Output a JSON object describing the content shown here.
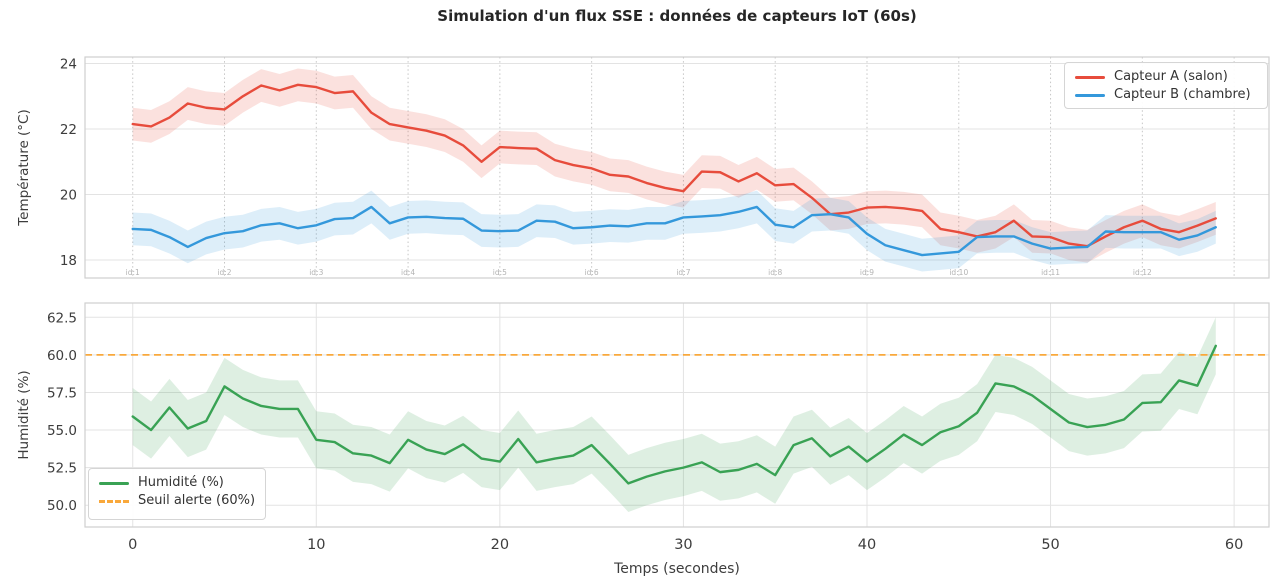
{
  "figure": {
    "title": "Simulation d'un flux SSE : données de capteurs IoT (60s)"
  },
  "style": {
    "background": "#ffffff",
    "title_color": "#262626",
    "grid": "#e3e3e3",
    "spine": "#cfcfcf",
    "dotted_vline": "#c6c6c6",
    "tick_label": "#3d3d3d",
    "id_label": "#b4b4b4",
    "legend_border": "#d5d5d5",
    "legend_text": "#333333"
  },
  "chart_data": [
    {
      "type": "line",
      "title": "",
      "xlabel": "",
      "ylabel": "Température (°C)",
      "xlim": [
        -2.6,
        61.9
      ],
      "ylim": [
        17.45,
        24.2
      ],
      "x_seconds": {
        "start": 0,
        "end": 59,
        "step": 1
      },
      "yticks": {
        "values": [
          18,
          20,
          22,
          24
        ],
        "labels": [
          "18",
          "20",
          "22",
          "24"
        ]
      },
      "grid": "horizontal solid, dotted vertical lines at id marks",
      "legend_position": "upper right",
      "series": [
        {
          "name": "Capteur A (salon)",
          "color": "#e74c3c",
          "band_halfwidth": 0.5,
          "values": [
            22.15,
            22.08,
            22.35,
            22.78,
            22.65,
            22.6,
            23.0,
            23.33,
            23.18,
            23.35,
            23.28,
            23.1,
            23.15,
            22.5,
            22.15,
            22.05,
            21.95,
            21.8,
            21.5,
            21.0,
            21.45,
            21.42,
            21.4,
            21.05,
            20.9,
            20.8,
            20.6,
            20.55,
            20.35,
            20.2,
            20.1,
            20.7,
            20.68,
            20.4,
            20.65,
            20.28,
            20.32,
            19.9,
            19.4,
            19.45,
            19.6,
            19.62,
            19.58,
            19.5,
            18.95,
            18.85,
            18.72,
            18.85,
            19.2,
            18.72,
            18.7,
            18.5,
            18.42,
            18.72,
            19.0,
            19.2,
            18.95,
            18.85,
            19.05,
            19.27
          ]
        },
        {
          "name": "Capteur B (chambre)",
          "color": "#3498db",
          "band_halfwidth": 0.5,
          "values": [
            18.95,
            18.92,
            18.7,
            18.4,
            18.67,
            18.82,
            18.88,
            19.06,
            19.12,
            18.97,
            19.06,
            19.25,
            19.28,
            19.62,
            19.12,
            19.3,
            19.32,
            19.28,
            19.26,
            18.9,
            18.88,
            18.9,
            19.2,
            19.17,
            18.97,
            19.0,
            19.05,
            19.03,
            19.12,
            19.12,
            19.3,
            19.33,
            19.37,
            19.47,
            19.62,
            19.08,
            19.0,
            19.37,
            19.4,
            19.3,
            18.8,
            18.45,
            18.3,
            18.15,
            18.2,
            18.25,
            18.7,
            18.72,
            18.72,
            18.5,
            18.35,
            18.38,
            18.4,
            18.87,
            18.85,
            18.85,
            18.85,
            18.62,
            18.75,
            19.0
          ]
        }
      ],
      "id_marks": {
        "positions": [
          0,
          5,
          10,
          15,
          20,
          25,
          30,
          35,
          40,
          45,
          50,
          55,
          60
        ],
        "labels": [
          "id:1",
          "id:2",
          "id:3",
          "id:4",
          "id:5",
          "id:6",
          "id:7",
          "id:8",
          "id:9",
          "id:10",
          "id:11",
          "id:12",
          ""
        ]
      }
    },
    {
      "type": "line",
      "title": "",
      "xlabel": "Temps (secondes)",
      "ylabel": "Humidité (%)",
      "xlim": [
        -2.6,
        61.9
      ],
      "ylim": [
        48.55,
        63.45
      ],
      "x_seconds": {
        "start": 0,
        "end": 59,
        "step": 1
      },
      "yticks": {
        "values": [
          50,
          52.5,
          55,
          57.5,
          60,
          62.5
        ],
        "labels": [
          "50.0",
          "52.5",
          "55.0",
          "57.5",
          "60.0",
          "62.5"
        ]
      },
      "xticks": {
        "values": [
          0,
          10,
          20,
          30,
          40,
          50,
          60
        ],
        "labels": [
          "0",
          "10",
          "20",
          "30",
          "40",
          "50",
          "60"
        ]
      },
      "grid": "solid horizontal and vertical gridlines",
      "legend_position": "lower left",
      "series": [
        {
          "name": "Humidité (%)",
          "color": "#39a254",
          "band_halfwidth": 1.9,
          "values": [
            55.9,
            55.0,
            56.5,
            55.1,
            55.6,
            57.9,
            57.1,
            56.6,
            56.4,
            56.4,
            54.35,
            54.2,
            53.45,
            53.3,
            52.8,
            54.35,
            53.7,
            53.4,
            54.05,
            53.1,
            52.9,
            54.4,
            52.85,
            53.1,
            53.3,
            54.0,
            52.75,
            51.45,
            51.9,
            52.25,
            52.5,
            52.85,
            52.2,
            52.35,
            52.75,
            52.0,
            54.0,
            54.45,
            53.25,
            53.9,
            52.9,
            53.75,
            54.7,
            54.0,
            54.85,
            55.25,
            56.15,
            58.1,
            57.9,
            57.3,
            56.4,
            55.5,
            55.2,
            55.35,
            55.7,
            56.8,
            56.85,
            58.3,
            57.95,
            60.6
          ]
        }
      ],
      "threshold": {
        "label": "Seuil alerte (60%)",
        "value": 60,
        "color": "#f9a83b",
        "style": "dashed"
      }
    }
  ]
}
